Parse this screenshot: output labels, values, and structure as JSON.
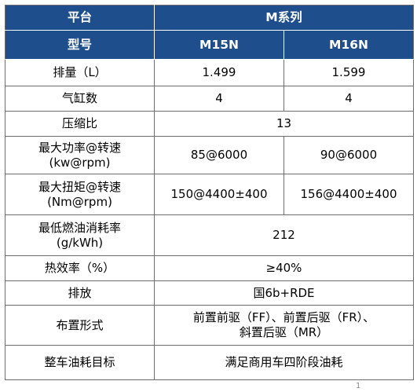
{
  "table": {
    "header": {
      "platform_label": "平台",
      "platform_value": "M系列",
      "model_label": "型号",
      "models": [
        "M15N",
        "M16N"
      ]
    },
    "rows": {
      "displacement": {
        "label": "排量（L）",
        "m15n": "1.499",
        "m16n": "1.599"
      },
      "cylinders": {
        "label": "气缸数",
        "m15n": "4",
        "m16n": "4"
      },
      "compression": {
        "label": "压缩比",
        "value": "13"
      },
      "max_power": {
        "label_line1": "最大功率@转速",
        "label_line2": "(kw@rpm)",
        "m15n": "85@6000",
        "m16n": "90@6000"
      },
      "max_torque": {
        "label_line1": "最大扭矩@转速",
        "label_line2": "(Nm@rpm)",
        "m15n": "150@4400±400",
        "m16n": "156@4400±400"
      },
      "bsfc": {
        "label_line1": "最低燃油消耗率",
        "label_line2": "(g/kWh)",
        "value": "212"
      },
      "efficiency": {
        "label": "热效率（%）",
        "value": "≥40%"
      },
      "emission": {
        "label": "排放",
        "value": "国6b+RDE"
      },
      "layout": {
        "label": "布置形式",
        "value_line1": "前置前驱（FF）、前置后驱（FR）、",
        "value_line2": "斜置后驱（MR）"
      },
      "fuel_target": {
        "label": "整车油耗目标",
        "value": "满足商用车四阶段油耗"
      }
    }
  },
  "page_number": "1",
  "colors": {
    "header_bg": "#1f4e8c",
    "header_text": "#ffffff",
    "border": "#6d6d6d"
  }
}
